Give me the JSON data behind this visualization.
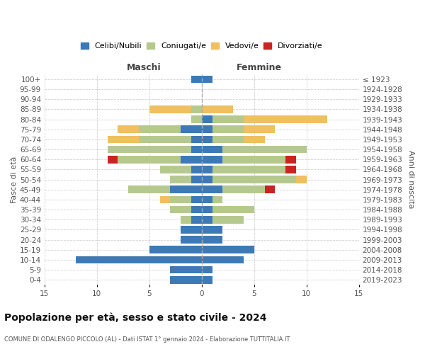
{
  "age_groups": [
    "0-4",
    "5-9",
    "10-14",
    "15-19",
    "20-24",
    "25-29",
    "30-34",
    "35-39",
    "40-44",
    "45-49",
    "50-54",
    "55-59",
    "60-64",
    "65-69",
    "70-74",
    "75-79",
    "80-84",
    "85-89",
    "90-94",
    "95-99",
    "100+"
  ],
  "birth_years": [
    "2019-2023",
    "2014-2018",
    "2009-2013",
    "2004-2008",
    "1999-2003",
    "1994-1998",
    "1989-1993",
    "1984-1988",
    "1979-1983",
    "1974-1978",
    "1969-1973",
    "1964-1968",
    "1959-1963",
    "1954-1958",
    "1949-1953",
    "1944-1948",
    "1939-1943",
    "1934-1938",
    "1929-1933",
    "1924-1928",
    "≤ 1923"
  ],
  "male": {
    "celibi": [
      3,
      3,
      12,
      5,
      2,
      2,
      1,
      1,
      1,
      3,
      1,
      1,
      2,
      1,
      1,
      2,
      0,
      0,
      0,
      0,
      1
    ],
    "coniugati": [
      0,
      0,
      0,
      0,
      0,
      0,
      1,
      2,
      2,
      4,
      2,
      3,
      6,
      8,
      5,
      4,
      1,
      1,
      0,
      0,
      0
    ],
    "vedovi": [
      0,
      0,
      0,
      0,
      0,
      0,
      0,
      0,
      1,
      0,
      0,
      0,
      0,
      0,
      3,
      2,
      0,
      4,
      0,
      0,
      0
    ],
    "divorziati": [
      0,
      0,
      0,
      0,
      0,
      0,
      0,
      0,
      0,
      0,
      0,
      0,
      1,
      0,
      0,
      0,
      0,
      0,
      0,
      0,
      0
    ]
  },
  "female": {
    "nubili": [
      1,
      1,
      4,
      5,
      2,
      2,
      1,
      1,
      1,
      2,
      1,
      1,
      2,
      2,
      1,
      1,
      1,
      0,
      0,
      0,
      1
    ],
    "coniugate": [
      0,
      0,
      0,
      0,
      0,
      0,
      3,
      4,
      1,
      4,
      8,
      7,
      6,
      8,
      3,
      3,
      3,
      0,
      0,
      0,
      0
    ],
    "vedove": [
      0,
      0,
      0,
      0,
      0,
      0,
      0,
      0,
      0,
      0,
      1,
      0,
      0,
      0,
      2,
      3,
      8,
      3,
      0,
      0,
      0
    ],
    "divorziate": [
      0,
      0,
      0,
      0,
      0,
      0,
      0,
      0,
      0,
      1,
      0,
      1,
      1,
      0,
      0,
      0,
      0,
      0,
      0,
      0,
      0
    ]
  },
  "colors": {
    "celibi_nubili": "#3d7ab5",
    "coniugati": "#b5c98e",
    "vedovi": "#f0bf60",
    "divorziati": "#cc2222"
  },
  "xlim": 15,
  "title": "Popolazione per età, sesso e stato civile - 2024",
  "subtitle": "COMUNE DI ODALENGO PICCOLO (AL) - Dati ISTAT 1° gennaio 2024 - Elaborazione TUTTITALIA.IT",
  "ylabel_left": "Fasce di età",
  "ylabel_right": "Anni di nascita",
  "xlabel_left": "Maschi",
  "xlabel_right": "Femmine",
  "legend_labels": [
    "Celibi/Nubili",
    "Coniugati/e",
    "Vedovi/e",
    "Divorziati/e"
  ],
  "bg_color": "#ffffff",
  "grid_color": "#cccccc",
  "bar_height": 0.75
}
